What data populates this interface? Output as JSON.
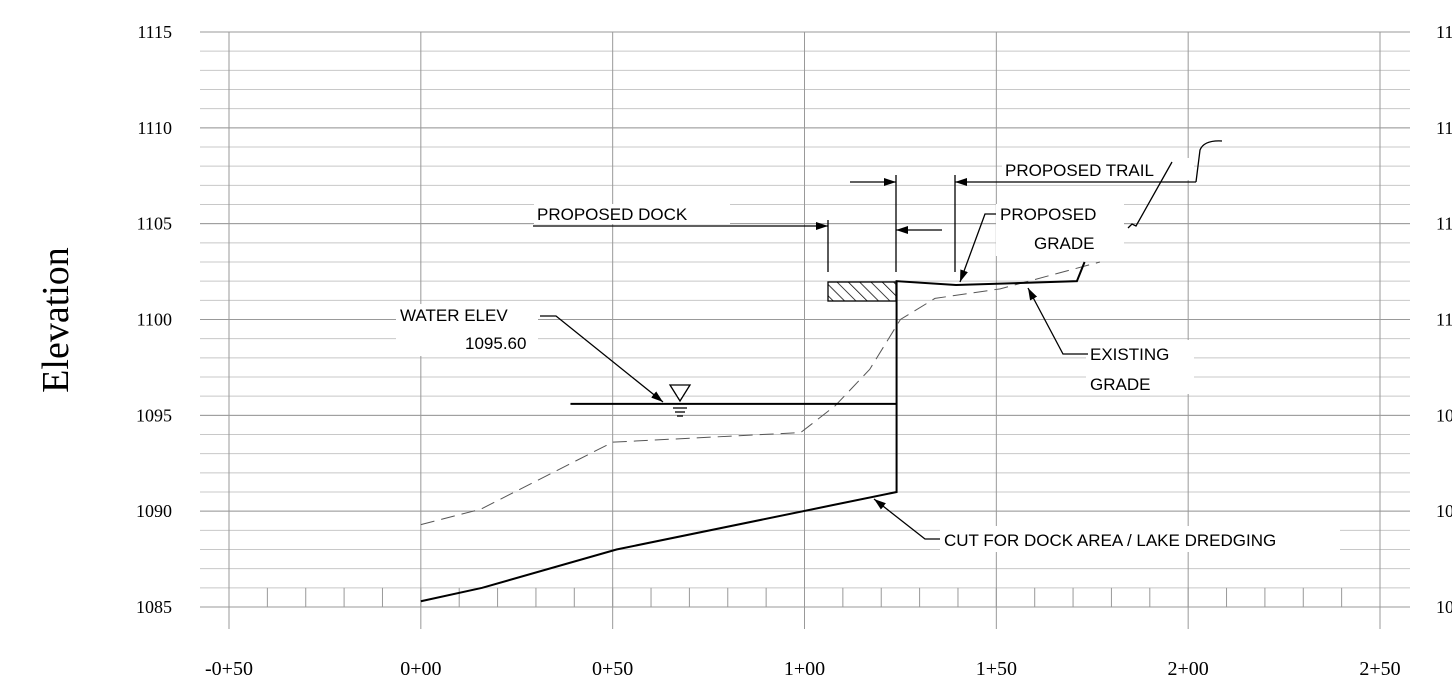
{
  "chart_data": {
    "type": "profile",
    "ylabel": "Elevation",
    "xlim": [
      -50,
      250
    ],
    "ylim": [
      1085,
      1115
    ],
    "xticks": [
      {
        "value": -50,
        "label": "-0+50"
      },
      {
        "value": 0,
        "label": "0+00"
      },
      {
        "value": 50,
        "label": "0+50"
      },
      {
        "value": 100,
        "label": "1+00"
      },
      {
        "value": 150,
        "label": "1+50"
      },
      {
        "value": 200,
        "label": "2+00"
      },
      {
        "value": 250,
        "label": "2+50"
      }
    ],
    "yticks": [
      1085,
      1090,
      1095,
      1100,
      1105,
      1110,
      1115
    ],
    "grid": true,
    "minor_grid_step_y": 1,
    "minor_grid_step_x": 10,
    "series": [
      {
        "color": "#555555",
        "style": "dashed",
        "x": [
          0,
          15.6,
          50,
          99,
          108,
          117,
          125,
          134,
          151,
          177
        ],
        "values": [
          1089.3,
          1090.1,
          1093.6,
          1094.1,
          1095.5,
          1097.4,
          1100,
          1101.1,
          1101.6,
          1103
        ]
      },
      {
        "color": "#000000",
        "style": "solid",
        "x": [
          0,
          16,
          51,
          107,
          124,
          124,
          139.5,
          171,
          173
        ],
        "values": [
          1085.3,
          1086,
          1088,
          1090.3,
          1091,
          1102,
          1101.8,
          1102,
          1103
        ]
      },
      {
        "color": "#000000",
        "style": "solid",
        "x": [
          39,
          124
        ],
        "values": [
          1095.6,
          1095.6
        ]
      }
    ],
    "annotations": {
      "proposed_dock": "PROPOSED DOCK",
      "proposed_trail": "PROPOSED TRAIL",
      "proposed_grade": [
        "PROPOSED",
        "GRADE"
      ],
      "existing_grade": [
        "EXISTING",
        "GRADE"
      ],
      "water_elev": [
        "WATER ELEV",
        "1095.60"
      ],
      "cut": "CUT FOR DOCK AREA / LAKE DREDGING"
    }
  }
}
